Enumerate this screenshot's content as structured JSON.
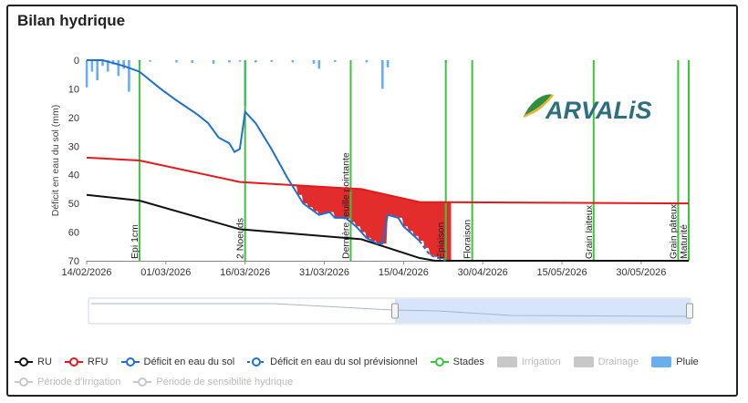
{
  "title": "Bilan hydrique",
  "colors": {
    "ru": "#111111",
    "rfu": "#e11b1b",
    "deficit": "#1f6fd1",
    "pluie": "#6aaef0",
    "stades": "#3cc43c",
    "off": "#c8c8c8"
  },
  "chart_data": {
    "type": "line",
    "ylabel": "Déficit en eau du sol (mm)",
    "ylim": [
      0,
      70
    ],
    "yticks": [
      0,
      10,
      20,
      30,
      40,
      50,
      60,
      70
    ],
    "y_inverted": true,
    "xlim": [
      "2026-02-14",
      "2026-06-08"
    ],
    "xticks": [
      "2026-02-14",
      "2026-03-01",
      "2026-03-16",
      "2026-03-31",
      "2026-04-15",
      "2026-04-30",
      "2026-05-15",
      "2026-05-30"
    ],
    "xtick_labels": [
      "14/02/2026",
      "01/03/2026",
      "16/03/2026",
      "31/03/2026",
      "15/04/2026",
      "30/04/2026",
      "15/05/2026",
      "30/05/2026"
    ],
    "series": [
      {
        "name": "RU",
        "color": "#111111",
        "points": [
          [
            "2026-02-14",
            47
          ],
          [
            "2026-02-24",
            49
          ],
          [
            "2026-03-15",
            59
          ],
          [
            "2026-04-07",
            62.5
          ],
          [
            "2026-04-18",
            69
          ],
          [
            "2026-04-21",
            70
          ],
          [
            "2026-06-08",
            70
          ]
        ]
      },
      {
        "name": "RFU",
        "color": "#e11b1b",
        "points": [
          [
            "2026-02-14",
            34
          ],
          [
            "2026-02-24",
            35
          ],
          [
            "2026-03-15",
            42.5
          ],
          [
            "2026-04-07",
            45
          ],
          [
            "2026-04-18",
            49.5
          ],
          [
            "2026-06-08",
            50
          ]
        ]
      },
      {
        "name": "Déficit en eau du sol",
        "color": "#1f6fd1",
        "points": [
          [
            "2026-02-14",
            0
          ],
          [
            "2026-02-17",
            0
          ],
          [
            "2026-02-21",
            2
          ],
          [
            "2026-02-24",
            4
          ],
          [
            "2026-02-28",
            10
          ],
          [
            "2026-03-03",
            14
          ],
          [
            "2026-03-07",
            19
          ],
          [
            "2026-03-09",
            22
          ],
          [
            "2026-03-11",
            27
          ],
          [
            "2026-03-13",
            29
          ],
          [
            "2026-03-14",
            32
          ],
          [
            "2026-03-15",
            31
          ],
          [
            "2026-03-16",
            18
          ],
          [
            "2026-03-18",
            22
          ],
          [
            "2026-03-21",
            31
          ],
          [
            "2026-03-24",
            41
          ],
          [
            "2026-03-27",
            50
          ],
          [
            "2026-03-30",
            54
          ],
          [
            "2026-04-01",
            53
          ],
          [
            "2026-04-02",
            55
          ],
          [
            "2026-04-04",
            55
          ],
          [
            "2026-04-06",
            58
          ],
          [
            "2026-04-08",
            62
          ],
          [
            "2026-04-10",
            64
          ],
          [
            "2026-04-11",
            64
          ],
          [
            "2026-04-12",
            54
          ],
          [
            "2026-04-14",
            55
          ],
          [
            "2026-04-15",
            58
          ],
          [
            "2026-04-18",
            63
          ]
        ]
      },
      {
        "name": "Déficit en eau du sol prévisionnel",
        "color": "#1f6fd1",
        "points": [
          [
            "2026-04-18",
            63
          ],
          [
            "2026-04-20",
            68
          ],
          [
            "2026-04-23",
            70
          ]
        ]
      }
    ],
    "rain": [
      [
        "2026-02-14",
        9.5
      ],
      [
        "2026-02-15",
        4
      ],
      [
        "2026-02-16",
        7
      ],
      [
        "2026-02-17",
        2
      ],
      [
        "2026-02-18",
        4
      ],
      [
        "2026-02-19",
        1.5
      ],
      [
        "2026-02-20",
        5.5
      ],
      [
        "2026-02-21",
        3
      ],
      [
        "2026-02-22",
        11
      ],
      [
        "2026-02-24",
        0.8
      ],
      [
        "2026-02-26",
        0.5
      ],
      [
        "2026-03-03",
        0.8
      ],
      [
        "2026-03-06",
        1
      ],
      [
        "2026-03-10",
        1.2
      ],
      [
        "2026-03-13",
        0.8
      ],
      [
        "2026-03-15",
        0.5
      ],
      [
        "2026-03-16",
        16
      ],
      [
        "2026-03-18",
        0.8
      ],
      [
        "2026-03-21",
        0.6
      ],
      [
        "2026-03-25",
        0.8
      ],
      [
        "2026-03-29",
        1.2
      ],
      [
        "2026-03-30",
        3
      ],
      [
        "2026-04-02",
        0.6
      ],
      [
        "2026-04-08",
        0.8
      ],
      [
        "2026-04-11",
        10
      ],
      [
        "2026-04-12",
        2.5
      ],
      [
        "2026-04-23",
        0.8
      ]
    ],
    "stades": [
      {
        "label": "Epi 1cm",
        "date": "2026-02-24"
      },
      {
        "label": "2 Noeuds",
        "date": "2026-03-16"
      },
      {
        "label": "Dernière feuille pointante",
        "date": "2026-04-05"
      },
      {
        "label": "Epiaison",
        "date": "2026-04-23"
      },
      {
        "label": "Floraison",
        "date": "2026-04-28"
      },
      {
        "label": "Grain laiteux",
        "date": "2026-05-21"
      },
      {
        "label": "Grain pâteux",
        "date": "2026-06-06"
      },
      {
        "label": "Maturité",
        "date": "2026-06-08"
      }
    ]
  },
  "logo": {
    "text": "ARVALiS"
  },
  "legend": [
    {
      "label": "RU",
      "kind": "line",
      "color": "#111111",
      "active": true
    },
    {
      "label": "RFU",
      "kind": "line",
      "color": "#e11b1b",
      "active": true
    },
    {
      "label": "Déficit en eau du sol",
      "kind": "line",
      "color": "#1f6fd1",
      "active": true
    },
    {
      "label": "Déficit en eau du sol prévisionnel",
      "kind": "dash",
      "color": "#1f6fd1",
      "active": true
    },
    {
      "label": "Stades",
      "kind": "line",
      "color": "#3cc43c",
      "active": true
    },
    {
      "label": "Irrigation",
      "kind": "box",
      "color": "#c8c8c8",
      "active": false
    },
    {
      "label": "Drainage",
      "kind": "box",
      "color": "#c8c8c8",
      "active": false
    },
    {
      "label": "Pluie",
      "kind": "box",
      "color": "#6aaef0",
      "active": true
    },
    {
      "label": "Période d'irrigation",
      "kind": "line",
      "color": "#c8c8c8",
      "active": false
    },
    {
      "label": "Période de sensibilité hydrique",
      "kind": "line",
      "color": "#c8c8c8",
      "active": false
    }
  ]
}
